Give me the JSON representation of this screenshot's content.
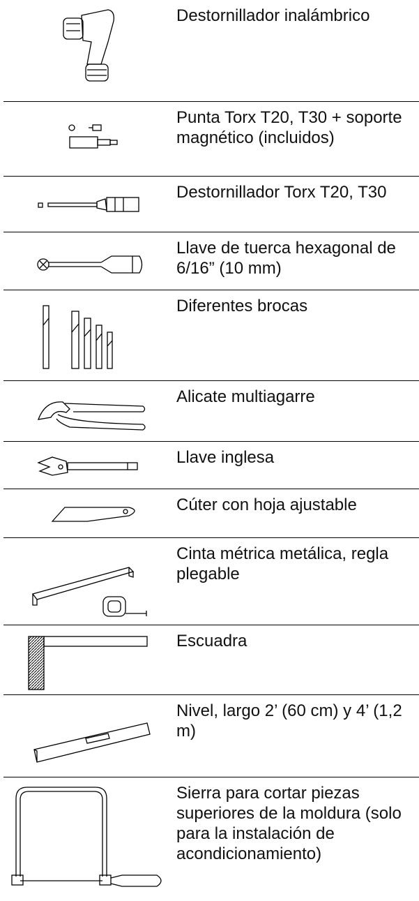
{
  "rows": [
    "Destornillador inalámbrico",
    "Punta Torx T20, T30 + soporte magnético (incluidos)",
    "Destornillador Torx T20, T30",
    "Llave de tuerca hexagonal de 6/16” (10 mm)",
    "Diferentes brocas",
    "Alicate multiagarre",
    "Llave inglesa",
    "Cúter con hoja ajustable",
    "Cinta métrica metálica, regla plegable",
    "Escuadra",
    "Nivel, largo 2’ (60 cm) y 4’ (1,2 m)",
    "Sierra para cortar piezas superiores de la moldura (solo para la instalación de acondicionamiento)"
  ]
}
